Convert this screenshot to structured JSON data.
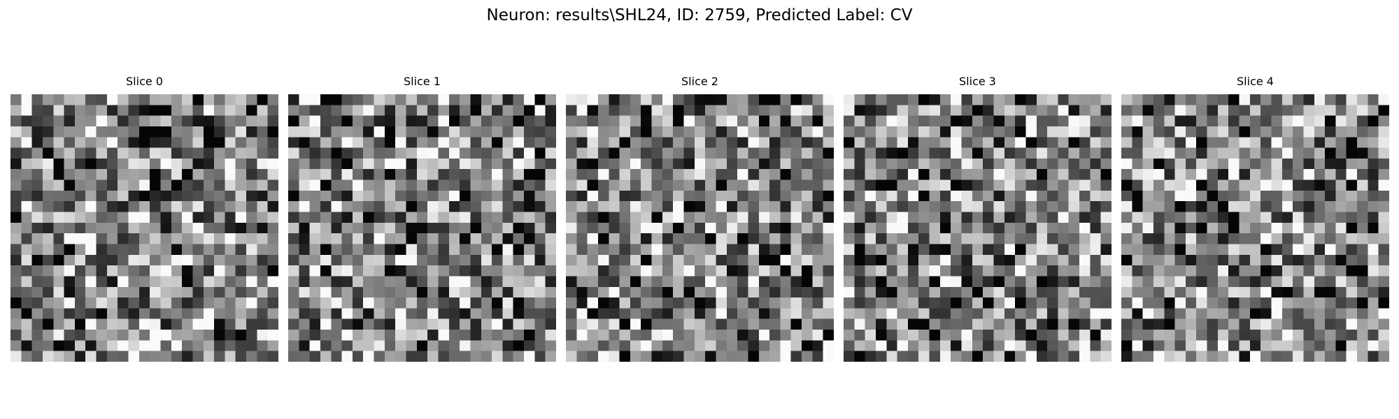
{
  "figure": {
    "title": "Neuron: results\\SHL24, ID: 2759, Predicted Label: CV",
    "colormap": "gray",
    "grid_size": 25,
    "slices": [
      {
        "label": "Slice 0"
      },
      {
        "label": "Slice 1"
      },
      {
        "label": "Slice 2"
      },
      {
        "label": "Slice 3"
      },
      {
        "label": "Slice 4"
      }
    ]
  }
}
